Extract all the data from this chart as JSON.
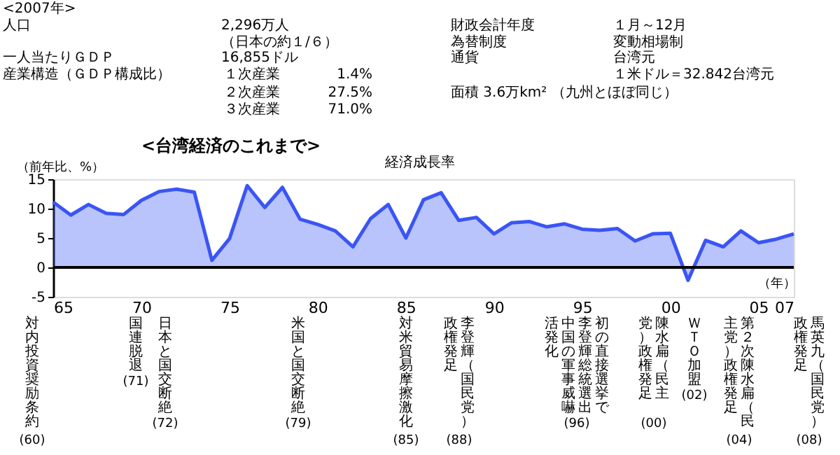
{
  "chart_data": {
    "type": "area",
    "title": "<台湾経済のこれまで>",
    "subtitle": "経済成長率",
    "ylabel": "（前年比、%）",
    "xlabel": "（年）",
    "x": [
      1965,
      1966,
      1967,
      1968,
      1969,
      1970,
      1971,
      1972,
      1973,
      1974,
      1975,
      1976,
      1977,
      1978,
      1979,
      1980,
      1981,
      1982,
      1983,
      1984,
      1985,
      1986,
      1987,
      1988,
      1989,
      1990,
      1991,
      1992,
      1993,
      1994,
      1995,
      1996,
      1997,
      1998,
      1999,
      2000,
      2001,
      2002,
      2003,
      2004,
      2005,
      2006,
      2007
    ],
    "series": [
      {
        "color": "#3a55f5",
        "values": [
          11.1,
          8.9,
          10.7,
          9.2,
          9.0,
          11.4,
          12.9,
          13.3,
          12.8,
          1.2,
          4.9,
          13.9,
          10.2,
          13.6,
          8.2,
          7.3,
          6.2,
          3.5,
          8.3,
          10.7,
          5.0,
          11.5,
          12.7,
          8.0,
          8.5,
          5.7,
          7.6,
          7.8,
          6.9,
          7.4,
          6.5,
          6.3,
          6.6,
          4.5,
          5.7,
          5.8,
          -2.2,
          4.6,
          3.5,
          6.2,
          4.2,
          4.8,
          5.7
        ]
      }
    ],
    "xlim": [
      1965,
      2007
    ],
    "xticks": [
      {
        "value": 1965,
        "label": "65"
      },
      {
        "value": 1970,
        "label": "70"
      },
      {
        "value": 1975,
        "label": "75"
      },
      {
        "value": 1980,
        "label": "80"
      },
      {
        "value": 1985,
        "label": "85"
      },
      {
        "value": 1990,
        "label": "90"
      },
      {
        "value": 1995,
        "label": "95"
      },
      {
        "value": 2000,
        "label": "00"
      },
      {
        "value": 2005,
        "label": "05"
      },
      {
        "value": 2007,
        "label": "07"
      }
    ],
    "ylim": [
      -5,
      15
    ],
    "yticks": [
      -5,
      0,
      5,
      10,
      15
    ],
    "ref_lines": [
      {
        "axis": "y",
        "value": 0,
        "color": "#000000"
      }
    ],
    "annotations": [
      "<2007年>",
      "人口",
      "2,296万人",
      "（日本の約１/６）",
      "一人当たりＧＤＰ",
      "16,855ドル",
      "産業構造（ＧＤＰ構成比）",
      "１次産業",
      "1.4%",
      "２次産業",
      "27.5%",
      "３次産業",
      "71.0%",
      "財政会計年度",
      "１月～12月",
      "為替制度",
      "変動相場制",
      "通貨",
      "台湾元",
      "１米ドル＝32.842台湾元",
      "面積 3.6万km² （九州とほぼ同じ）",
      "対内投資奨励条約",
      "(60)",
      "国連脱退",
      "(71)",
      "日本と国交断絶",
      "(72)",
      "米国と国交断絶",
      "(79)",
      "対米貿易摩擦激化",
      "(85)",
      "李登輝（国民党）",
      "政権発足",
      "(88)",
      "初の直接選挙で",
      "李登輝総統選出",
      "中国の軍事威嚇",
      "活発化",
      "(96)",
      "陳水扁（民主",
      "党）政権発足",
      "(00)",
      "ＷＴＯ加盟",
      "(02)",
      "第２次陳水扁（民",
      "主党）政権発足",
      "(04)",
      "馬英九（国民党）",
      "政権発足",
      "(08)"
    ]
  }
}
